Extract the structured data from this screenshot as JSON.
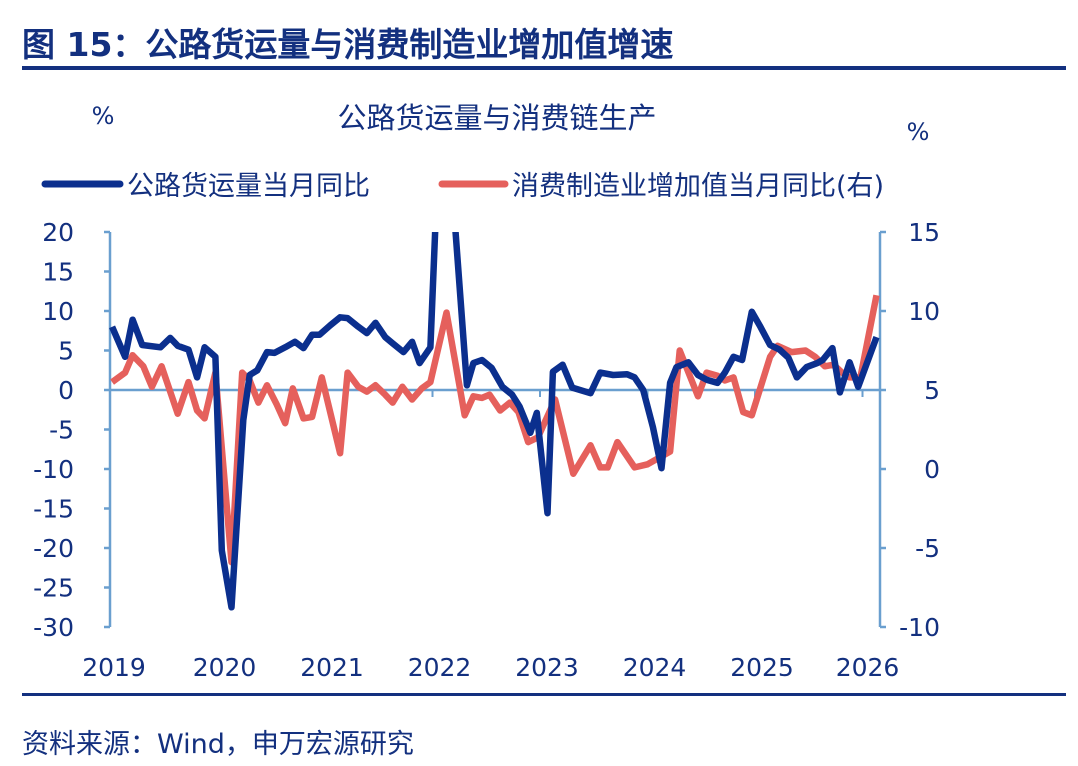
{
  "figure": {
    "title": "图 15：公路货运量与消费制造业增加值增速",
    "source": "资料来源：Wind，申万宏源研究"
  },
  "colors": {
    "series_blue": "#0b2f8e",
    "series_red": "#e5605c",
    "axis": "#6a9fcf",
    "text": "#13307f"
  },
  "chart_data": {
    "type": "line",
    "title": "公路货运量与消费链生产",
    "ylabel": "%",
    "y2label": "%",
    "ylim": [
      -30,
      20
    ],
    "y2lim": [
      -10,
      15
    ],
    "yticks": [
      "20",
      "15",
      "10",
      "5",
      "0",
      "-5",
      "-10",
      "-15",
      "-20",
      "-25",
      "-30"
    ],
    "y2ticks": [
      "15",
      "10",
      "5",
      "0",
      "-5",
      "-10"
    ],
    "xlim": [
      2019,
      2026.15
    ],
    "xticks": [
      "2019",
      "2020",
      "2021",
      "2022",
      "2023",
      "2024",
      "2025",
      "2026"
    ],
    "grid": false,
    "legend": "top",
    "series": [
      {
        "name": "公路货运量当月同比",
        "axis": "left",
        "color": "#0b2f8e",
        "points": [
          [
            2019.02,
            8.0
          ],
          [
            2019.14,
            4.2
          ],
          [
            2019.21,
            8.9
          ],
          [
            2019.3,
            5.7
          ],
          [
            2019.47,
            5.4
          ],
          [
            2019.56,
            6.6
          ],
          [
            2019.63,
            5.6
          ],
          [
            2019.73,
            5.1
          ],
          [
            2019.81,
            1.6
          ],
          [
            2019.88,
            5.4
          ],
          [
            2019.98,
            4.2
          ],
          [
            2020.04,
            -20.3
          ],
          [
            2020.13,
            -27.5
          ],
          [
            2020.24,
            -3.8
          ],
          [
            2020.3,
            1.9
          ],
          [
            2020.37,
            2.5
          ],
          [
            2020.46,
            4.8
          ],
          [
            2020.53,
            4.7
          ],
          [
            2020.63,
            5.4
          ],
          [
            2020.72,
            6.1
          ],
          [
            2020.8,
            5.3
          ],
          [
            2020.88,
            7.0
          ],
          [
            2020.95,
            7.0
          ],
          [
            2021.05,
            8.2
          ],
          [
            2021.14,
            9.2
          ],
          [
            2021.21,
            9.1
          ],
          [
            2021.31,
            8.0
          ],
          [
            2021.39,
            7.2
          ],
          [
            2021.47,
            8.5
          ],
          [
            2021.56,
            6.7
          ],
          [
            2021.63,
            5.9
          ],
          [
            2021.73,
            4.8
          ],
          [
            2021.81,
            6.1
          ],
          [
            2021.88,
            3.4
          ],
          [
            2021.98,
            5.4
          ],
          [
            2022.07,
            35
          ],
          [
            2022.16,
            30
          ],
          [
            2022.32,
            0.6
          ],
          [
            2022.38,
            3.4
          ],
          [
            2022.46,
            3.8
          ],
          [
            2022.55,
            2.8
          ],
          [
            2022.65,
            0.4
          ],
          [
            2022.74,
            -0.6
          ],
          [
            2022.81,
            -2.1
          ],
          [
            2022.91,
            -5.4
          ],
          [
            2022.97,
            -2.9
          ],
          [
            2023.07,
            -15.6
          ],
          [
            2023.12,
            2.3
          ],
          [
            2023.21,
            3.2
          ],
          [
            2023.3,
            0.3
          ],
          [
            2023.47,
            -0.4
          ],
          [
            2023.56,
            2.2
          ],
          [
            2023.68,
            1.9
          ],
          [
            2023.81,
            2.0
          ],
          [
            2023.88,
            1.6
          ],
          [
            2023.96,
            0
          ],
          [
            2024.05,
            -4.7
          ],
          [
            2024.13,
            -9.9
          ],
          [
            2024.21,
            0.9
          ],
          [
            2024.27,
            2.9
          ],
          [
            2024.38,
            3.5
          ],
          [
            2024.47,
            1.9
          ],
          [
            2024.55,
            1.3
          ],
          [
            2024.65,
            0.9
          ],
          [
            2024.72,
            2.2
          ],
          [
            2024.8,
            4.2
          ],
          [
            2024.88,
            3.8
          ],
          [
            2024.97,
            9.9
          ],
          [
            2025.05,
            8.0
          ],
          [
            2025.14,
            5.7
          ],
          [
            2025.23,
            5.1
          ],
          [
            2025.31,
            4.1
          ],
          [
            2025.39,
            1.6
          ],
          [
            2025.48,
            2.9
          ],
          [
            2025.58,
            3.4
          ],
          [
            2025.63,
            3.8
          ],
          [
            2025.72,
            5.3
          ],
          [
            2025.79,
            -0.3
          ],
          [
            2025.88,
            3.5
          ],
          [
            2025.96,
            0.4
          ],
          [
            2026.13,
            6.7
          ]
        ]
      },
      {
        "name": "消费制造业增加值当月同比(右)",
        "axis": "right",
        "color": "#e5605c",
        "points": [
          [
            2019.02,
            5.5
          ],
          [
            2019.14,
            6.1
          ],
          [
            2019.21,
            7.2
          ],
          [
            2019.31,
            6.5
          ],
          [
            2019.39,
            5.2
          ],
          [
            2019.48,
            6.5
          ],
          [
            2019.63,
            3.5
          ],
          [
            2019.73,
            5.5
          ],
          [
            2019.81,
            3.7
          ],
          [
            2019.88,
            3.2
          ],
          [
            2019.98,
            6.1
          ],
          [
            2020.13,
            -5.9
          ],
          [
            2020.23,
            6.1
          ],
          [
            2020.3,
            5.6
          ],
          [
            2020.38,
            4.2
          ],
          [
            2020.46,
            5.3
          ],
          [
            2020.55,
            4.1
          ],
          [
            2020.63,
            2.9
          ],
          [
            2020.7,
            5.1
          ],
          [
            2020.8,
            3.2
          ],
          [
            2020.88,
            3.3
          ],
          [
            2020.97,
            5.8
          ],
          [
            2021.14,
            1.0
          ],
          [
            2021.21,
            6.1
          ],
          [
            2021.31,
            5.2
          ],
          [
            2021.39,
            4.9
          ],
          [
            2021.47,
            5.3
          ],
          [
            2021.56,
            4.7
          ],
          [
            2021.63,
            4.2
          ],
          [
            2021.72,
            5.2
          ],
          [
            2021.81,
            4.4
          ],
          [
            2021.9,
            5.1
          ],
          [
            2021.98,
            5.5
          ],
          [
            2022.13,
            9.9
          ],
          [
            2022.3,
            3.4
          ],
          [
            2022.38,
            4.6
          ],
          [
            2022.46,
            4.5
          ],
          [
            2022.53,
            4.7
          ],
          [
            2022.63,
            3.7
          ],
          [
            2022.72,
            4.2
          ],
          [
            2022.8,
            3.6
          ],
          [
            2022.89,
            1.7
          ],
          [
            2022.98,
            2.0
          ],
          [
            2023.14,
            4.4
          ],
          [
            2023.31,
            -0.3
          ],
          [
            2023.47,
            1.5
          ],
          [
            2023.56,
            0.1
          ],
          [
            2023.63,
            0.1
          ],
          [
            2023.72,
            1.7
          ],
          [
            2023.88,
            0.1
          ],
          [
            2024.0,
            0.3
          ],
          [
            2024.21,
            1.1
          ],
          [
            2024.3,
            7.5
          ],
          [
            2024.47,
            4.6
          ],
          [
            2024.55,
            6.1
          ],
          [
            2024.65,
            5.9
          ],
          [
            2024.72,
            5.6
          ],
          [
            2024.8,
            5.8
          ],
          [
            2024.89,
            3.6
          ],
          [
            2024.97,
            3.4
          ],
          [
            2025.14,
            7.1
          ],
          [
            2025.21,
            7.8
          ],
          [
            2025.34,
            7.4
          ],
          [
            2025.47,
            7.5
          ],
          [
            2025.56,
            7.1
          ],
          [
            2025.65,
            6.5
          ],
          [
            2025.73,
            6.6
          ],
          [
            2025.81,
            6.1
          ],
          [
            2025.88,
            5.8
          ],
          [
            2025.98,
            5.8
          ],
          [
            2026.13,
            11.0
          ]
        ]
      }
    ]
  }
}
